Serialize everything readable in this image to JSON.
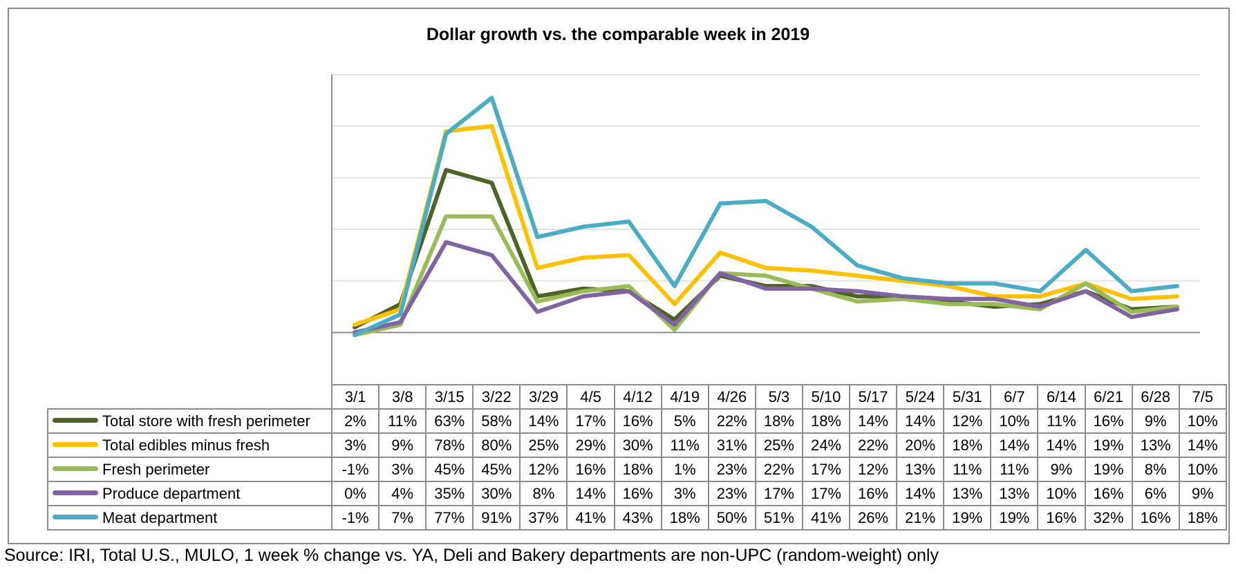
{
  "chart_data": {
    "type": "line",
    "title": "Dollar growth vs. the comparable week in 2019",
    "categories": [
      "3/1",
      "3/8",
      "3/15",
      "3/22",
      "3/29",
      "4/5",
      "4/12",
      "4/19",
      "4/26",
      "5/3",
      "5/10",
      "5/17",
      "5/24",
      "5/31",
      "6/7",
      "6/14",
      "6/21",
      "6/28",
      "7/5"
    ],
    "series": [
      {
        "name": "Total store with fresh perimeter",
        "color": "#4f6228",
        "values": [
          2,
          11,
          63,
          58,
          14,
          17,
          16,
          5,
          22,
          18,
          18,
          14,
          14,
          12,
          10,
          11,
          16,
          9,
          10
        ],
        "labels": [
          "2%",
          "11%",
          "63%",
          "58%",
          "14%",
          "17%",
          "16%",
          "5%",
          "22%",
          "18%",
          "18%",
          "14%",
          "14%",
          "12%",
          "10%",
          "11%",
          "16%",
          "9%",
          "10%"
        ]
      },
      {
        "name": "Total edibles minus fresh",
        "color": "#ffc000",
        "values": [
          3,
          9,
          78,
          80,
          25,
          29,
          30,
          11,
          31,
          25,
          24,
          22,
          20,
          18,
          14,
          14,
          19,
          13,
          14
        ],
        "labels": [
          "3%",
          "9%",
          "78%",
          "80%",
          "25%",
          "29%",
          "30%",
          "11%",
          "31%",
          "25%",
          "24%",
          "22%",
          "20%",
          "18%",
          "14%",
          "14%",
          "19%",
          "13%",
          "14%"
        ]
      },
      {
        "name": "Fresh perimeter",
        "color": "#9bbb59",
        "values": [
          -1,
          3,
          45,
          45,
          12,
          16,
          18,
          1,
          23,
          22,
          17,
          12,
          13,
          11,
          11,
          9,
          19,
          8,
          10
        ],
        "labels": [
          "-1%",
          "3%",
          "45%",
          "45%",
          "12%",
          "16%",
          "18%",
          "1%",
          "23%",
          "22%",
          "17%",
          "12%",
          "13%",
          "11%",
          "11%",
          "9%",
          "19%",
          "8%",
          "10%"
        ]
      },
      {
        "name": "Produce department",
        "color": "#8064a2",
        "values": [
          0,
          4,
          35,
          30,
          8,
          14,
          16,
          3,
          23,
          17,
          17,
          16,
          14,
          13,
          13,
          10,
          16,
          6,
          9
        ],
        "labels": [
          "0%",
          "4%",
          "35%",
          "30%",
          "8%",
          "14%",
          "16%",
          "3%",
          "23%",
          "17%",
          "17%",
          "16%",
          "14%",
          "13%",
          "13%",
          "10%",
          "16%",
          "6%",
          "9%"
        ]
      },
      {
        "name": "Meat department",
        "color": "#4bacc6",
        "values": [
          -1,
          7,
          77,
          91,
          37,
          41,
          43,
          18,
          50,
          51,
          41,
          26,
          21,
          19,
          19,
          16,
          32,
          16,
          18
        ],
        "labels": [
          "-1%",
          "7%",
          "77%",
          "91%",
          "37%",
          "41%",
          "43%",
          "18%",
          "50%",
          "51%",
          "41%",
          "26%",
          "21%",
          "19%",
          "19%",
          "16%",
          "32%",
          "16%",
          "18%"
        ]
      }
    ],
    "ylim": [
      -20,
      100
    ],
    "grid": true,
    "legend": "data-table"
  },
  "source_note": "Source: IRI, Total U.S., MULO, 1 week % change vs. YA, Deli and Bakery departments are non-UPC (random-weight) only"
}
